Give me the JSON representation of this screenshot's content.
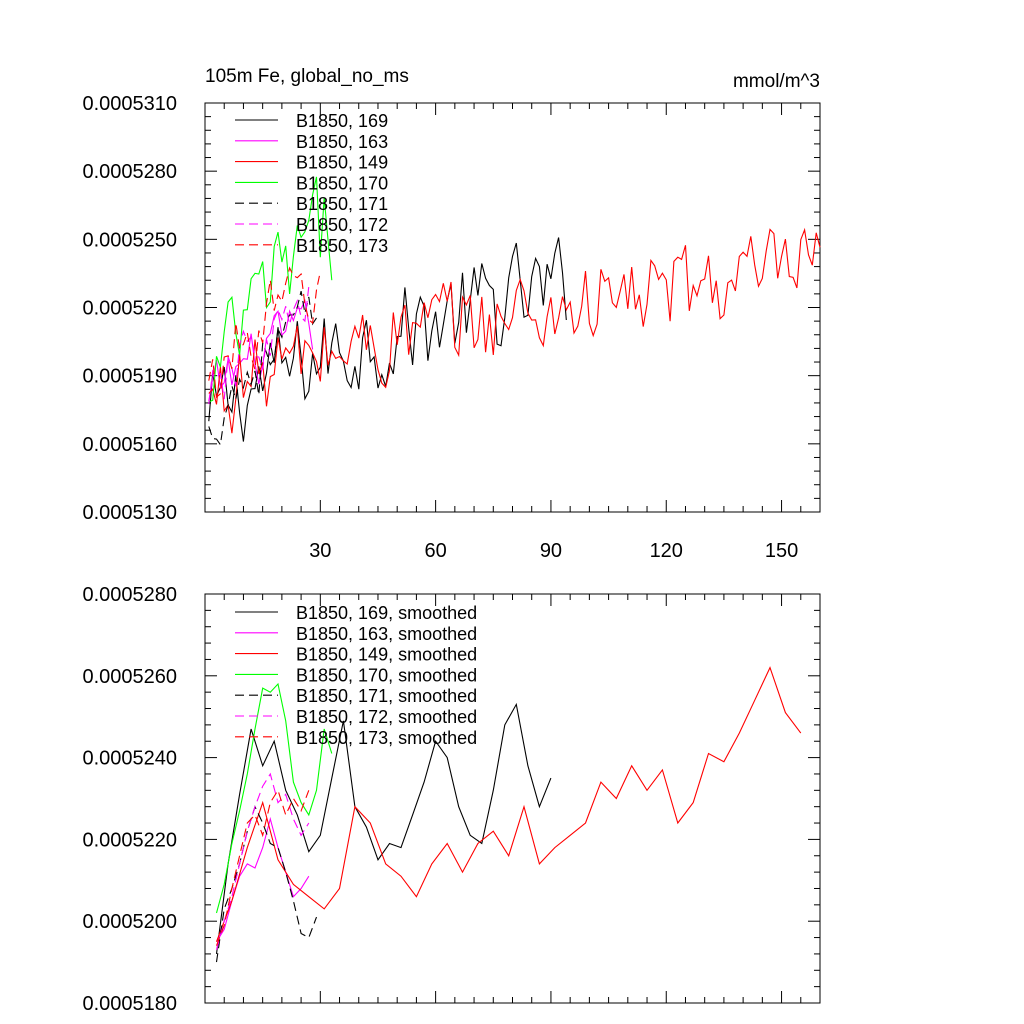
{
  "chart_data": [
    {
      "type": "line",
      "title_left": "105m Fe, global_no_ms",
      "title_right": "mmol/m^3",
      "xlabel": "",
      "ylabel": "",
      "xlim": [
        0,
        160
      ],
      "ylim": [
        0.000513,
        0.000531
      ],
      "y_ticks": [
        "0.0005310",
        "0.0005280",
        "0.0005250",
        "0.0005220",
        "0.0005190",
        "0.0005160",
        "0.0005130"
      ],
      "x_ticks": [
        "30",
        "60",
        "90",
        "120",
        "150"
      ],
      "legend": [
        "B1850, 169",
        "B1850, 163",
        "B1850, 149",
        "B1850, 170",
        "B1850, 171",
        "B1850, 172",
        "B1850, 173"
      ],
      "series": [
        {
          "name": "B1850, 169",
          "color": "#000000",
          "dash": "solid",
          "n": 94,
          "start": 0.0005165,
          "end": 0.0005228,
          "noise": 2e-06
        },
        {
          "name": "B1850, 163",
          "color": "#ff00ff",
          "dash": "solid",
          "n": 28,
          "start": 0.0005175,
          "end": 0.000521,
          "noise": 1.2e-06
        },
        {
          "name": "B1850, 149",
          "color": "#ff0000",
          "dash": "solid",
          "n": 160,
          "start": 0.0005175,
          "end": 0.0005236,
          "noise": 1.8e-06
        },
        {
          "name": "B1850, 170",
          "color": "#00ff00",
          "dash": "solid",
          "n": 33,
          "start": 0.0005168,
          "end": 0.0005255,
          "noise": 2.2e-06
        },
        {
          "name": "B1850, 171",
          "color": "#000000",
          "dash": "dashed",
          "n": 29,
          "start": 0.000516,
          "end": 0.0005215,
          "noise": 1.4e-06
        },
        {
          "name": "B1850, 172",
          "color": "#ff00ff",
          "dash": "dashed",
          "n": 28,
          "start": 0.000517,
          "end": 0.000522,
          "noise": 1.2e-06
        },
        {
          "name": "B1850, 173",
          "color": "#ff0000",
          "dash": "dashed",
          "n": 30,
          "start": 0.0005178,
          "end": 0.000523,
          "noise": 1.4e-06
        }
      ]
    },
    {
      "type": "line",
      "title_left": "",
      "title_right": "",
      "xlabel": "",
      "ylabel": "",
      "xlim": [
        0,
        160
      ],
      "ylim": [
        0.000518,
        0.000528
      ],
      "y_ticks": [
        "0.0005280",
        "0.0005260",
        "0.0005240",
        "0.0005220",
        "0.0005200",
        "0.0005180"
      ],
      "x_ticks": [],
      "legend": [
        "B1850, 169, smoothed",
        "B1850, 163, smoothed",
        "B1850, 149, smoothed",
        "B1850, 170, smoothed",
        "B1850, 171, smoothed",
        "B1850, 172, smoothed",
        "B1850, 173, smoothed"
      ],
      "series": [
        {
          "name": "B1850, 169, smoothed",
          "color": "#000000",
          "dash": "solid",
          "x": [
            3,
            6,
            9,
            12,
            15,
            18,
            21,
            24,
            27,
            30,
            33,
            36,
            39,
            42,
            45,
            48,
            51,
            54,
            57,
            60,
            63,
            66,
            69,
            72,
            75,
            78,
            81,
            84,
            87,
            90
          ],
          "y": [
            0.0005192,
            0.0005214,
            0.0005231,
            0.0005247,
            0.0005238,
            0.0005244,
            0.0005232,
            0.0005226,
            0.0005217,
            0.0005221,
            0.0005235,
            0.0005249,
            0.0005228,
            0.0005223,
            0.0005215,
            0.0005219,
            0.0005218,
            0.0005226,
            0.0005234,
            0.0005244,
            0.000524,
            0.0005228,
            0.0005221,
            0.0005219,
            0.0005232,
            0.0005248,
            0.0005253,
            0.0005238,
            0.0005228,
            0.0005235
          ]
        },
        {
          "name": "B1850, 163, smoothed",
          "color": "#ff00ff",
          "dash": "solid",
          "x": [
            3,
            5,
            7,
            9,
            11,
            13,
            15,
            17,
            19,
            21,
            23,
            25,
            27
          ],
          "y": [
            0.0005195,
            0.0005198,
            0.0005205,
            0.0005211,
            0.0005214,
            0.0005213,
            0.0005218,
            0.0005225,
            0.0005218,
            0.0005212,
            0.0005206,
            0.0005208,
            0.0005211
          ]
        },
        {
          "name": "B1850, 149, smoothed",
          "color": "#ff0000",
          "dash": "solid",
          "x": [
            3,
            7,
            11,
            15,
            19,
            23,
            27,
            31,
            35,
            39,
            43,
            47,
            51,
            55,
            59,
            63,
            67,
            71,
            75,
            79,
            83,
            87,
            91,
            95,
            99,
            103,
            107,
            111,
            115,
            119,
            123,
            127,
            131,
            135,
            139,
            143,
            147,
            151,
            155
          ],
          "y": [
            0.0005195,
            0.0005205,
            0.0005218,
            0.0005229,
            0.0005215,
            0.0005209,
            0.0005206,
            0.0005203,
            0.0005208,
            0.0005228,
            0.0005224,
            0.0005214,
            0.0005211,
            0.0005206,
            0.0005214,
            0.0005219,
            0.0005212,
            0.0005219,
            0.0005222,
            0.0005216,
            0.0005228,
            0.0005214,
            0.0005218,
            0.0005221,
            0.0005224,
            0.0005234,
            0.000523,
            0.0005238,
            0.0005232,
            0.0005237,
            0.0005224,
            0.0005229,
            0.0005241,
            0.0005239,
            0.0005246,
            0.0005254,
            0.0005262,
            0.0005251,
            0.0005246
          ]
        },
        {
          "name": "B1850, 170, smoothed",
          "color": "#00ff00",
          "dash": "solid",
          "x": [
            3,
            5,
            7,
            9,
            11,
            13,
            15,
            17,
            19,
            21,
            23,
            25,
            27,
            29,
            31,
            33
          ],
          "y": [
            0.0005202,
            0.0005209,
            0.0005219,
            0.0005227,
            0.0005236,
            0.0005247,
            0.0005257,
            0.0005256,
            0.0005258,
            0.0005249,
            0.0005234,
            0.0005229,
            0.0005226,
            0.0005232,
            0.0005247,
            0.0005241
          ]
        },
        {
          "name": "B1850, 171, smoothed",
          "color": "#000000",
          "dash": "dashed",
          "x": [
            3,
            5,
            7,
            9,
            11,
            13,
            15,
            17,
            19,
            21,
            23,
            25,
            27,
            29
          ],
          "y": [
            0.000519,
            0.0005203,
            0.0005208,
            0.0005214,
            0.0005222,
            0.0005228,
            0.0005224,
            0.0005219,
            0.0005218,
            0.0005212,
            0.0005205,
            0.0005197,
            0.0005196,
            0.0005201
          ]
        },
        {
          "name": "B1850, 172, smoothed",
          "color": "#ff00ff",
          "dash": "dashed",
          "x": [
            3,
            5,
            7,
            9,
            11,
            13,
            15,
            17,
            19,
            21,
            23,
            25,
            27
          ],
          "y": [
            0.0005193,
            0.00052,
            0.0005206,
            0.0005214,
            0.0005222,
            0.0005228,
            0.0005233,
            0.0005236,
            0.0005229,
            0.0005231,
            0.0005225,
            0.0005221,
            0.0005224
          ]
        },
        {
          "name": "B1850, 173, smoothed",
          "color": "#ff0000",
          "dash": "dashed",
          "x": [
            3,
            5,
            7,
            9,
            11,
            13,
            15,
            17,
            19,
            21,
            23,
            25,
            27
          ],
          "y": [
            0.0005194,
            0.0005199,
            0.0005208,
            0.0005216,
            0.0005224,
            0.0005226,
            0.0005221,
            0.0005229,
            0.0005232,
            0.0005226,
            0.000523,
            0.0005227,
            0.0005232
          ]
        }
      ]
    }
  ]
}
